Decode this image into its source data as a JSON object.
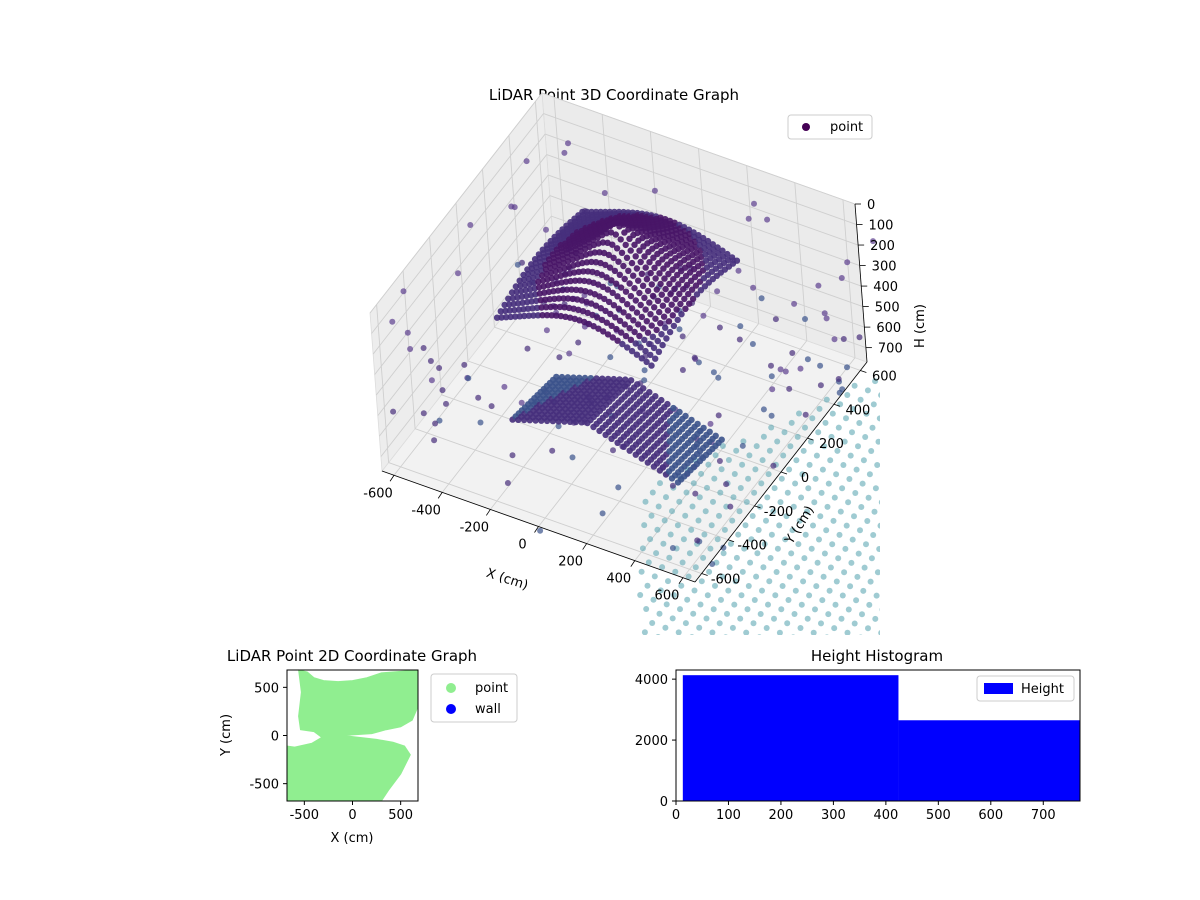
{
  "chart_data": [
    {
      "type": "scatter",
      "projection": "3d",
      "title": "LiDAR Point 3D Coordinate Graph",
      "xlabel": "X (cm)",
      "ylabel": "Y (cm)",
      "zlabel": "H (cm)",
      "xticks": [
        -600,
        -400,
        -200,
        0,
        200,
        400,
        600
      ],
      "yticks": [
        -600,
        -400,
        -200,
        0,
        200,
        400,
        600
      ],
      "zticks": [
        0,
        100,
        200,
        300,
        400,
        500,
        600,
        700
      ],
      "xlim": [
        -650,
        650
      ],
      "ylim": [
        -650,
        650
      ],
      "zlim": [
        0,
        770
      ],
      "z_axis_inverted": true,
      "grid": true,
      "legend": {
        "placement": "upper-right",
        "entries": [
          "point"
        ]
      },
      "series": [
        {
          "name": "point",
          "color_map": "viridis",
          "color_by": "H"
        }
      ],
      "colors": {
        "near": "#440154",
        "mid": "#3b528b",
        "far": "#5fa8b4"
      }
    },
    {
      "type": "scatter",
      "title": "LiDAR Point 2D Coordinate Graph",
      "xlabel": "X (cm)",
      "ylabel": "Y (cm)",
      "xticks": [
        -500,
        0,
        500
      ],
      "yticks": [
        -500,
        0,
        500
      ],
      "xlim": [
        -680,
        680
      ],
      "ylim": [
        -680,
        680
      ],
      "legend": {
        "placement": "outside-right",
        "entries": [
          "point",
          "wall"
        ]
      },
      "series": [
        {
          "name": "point",
          "color": "#90ee90",
          "region_outline": [
            [
              -560,
              680
            ],
            [
              -470,
              660
            ],
            [
              -400,
              600
            ],
            [
              -300,
              570
            ],
            [
              -150,
              560
            ],
            [
              0,
              570
            ],
            [
              150,
              600
            ],
            [
              300,
              650
            ],
            [
              680,
              680
            ],
            [
              680,
              300
            ],
            [
              620,
              160
            ],
            [
              500,
              90
            ],
            [
              350,
              60
            ],
            [
              200,
              20
            ],
            [
              -100,
              0
            ],
            [
              250,
              -40
            ],
            [
              420,
              -70
            ],
            [
              540,
              -110
            ],
            [
              600,
              -200
            ],
            [
              500,
              -400
            ],
            [
              380,
              -560
            ],
            [
              300,
              -680
            ],
            [
              -680,
              -680
            ],
            [
              -680,
              -110
            ],
            [
              -600,
              -120
            ],
            [
              -420,
              -80
            ],
            [
              -320,
              -20
            ],
            [
              -400,
              40
            ],
            [
              -540,
              60
            ],
            [
              -560,
              200
            ],
            [
              -530,
              450
            ],
            [
              -560,
              680
            ]
          ]
        },
        {
          "name": "wall",
          "color": "#0000ff",
          "points": []
        }
      ]
    },
    {
      "type": "bar",
      "title": "Height Histogram",
      "xlabel": "",
      "ylabel": "",
      "xticks": [
        0,
        100,
        200,
        300,
        400,
        500,
        600,
        700
      ],
      "yticks": [
        0,
        2000,
        4000
      ],
      "xlim": [
        0,
        770
      ],
      "ylim": [
        0,
        4300
      ],
      "legend": {
        "placement": "upper-right",
        "entries": [
          "Height"
        ]
      },
      "series": [
        {
          "name": "Height",
          "color": "#0000ff",
          "bins": [
            {
              "from": 13,
              "to": 424,
              "count": 4130
            },
            {
              "from": 424,
              "to": 770,
              "count": 2650
            }
          ]
        }
      ]
    }
  ]
}
